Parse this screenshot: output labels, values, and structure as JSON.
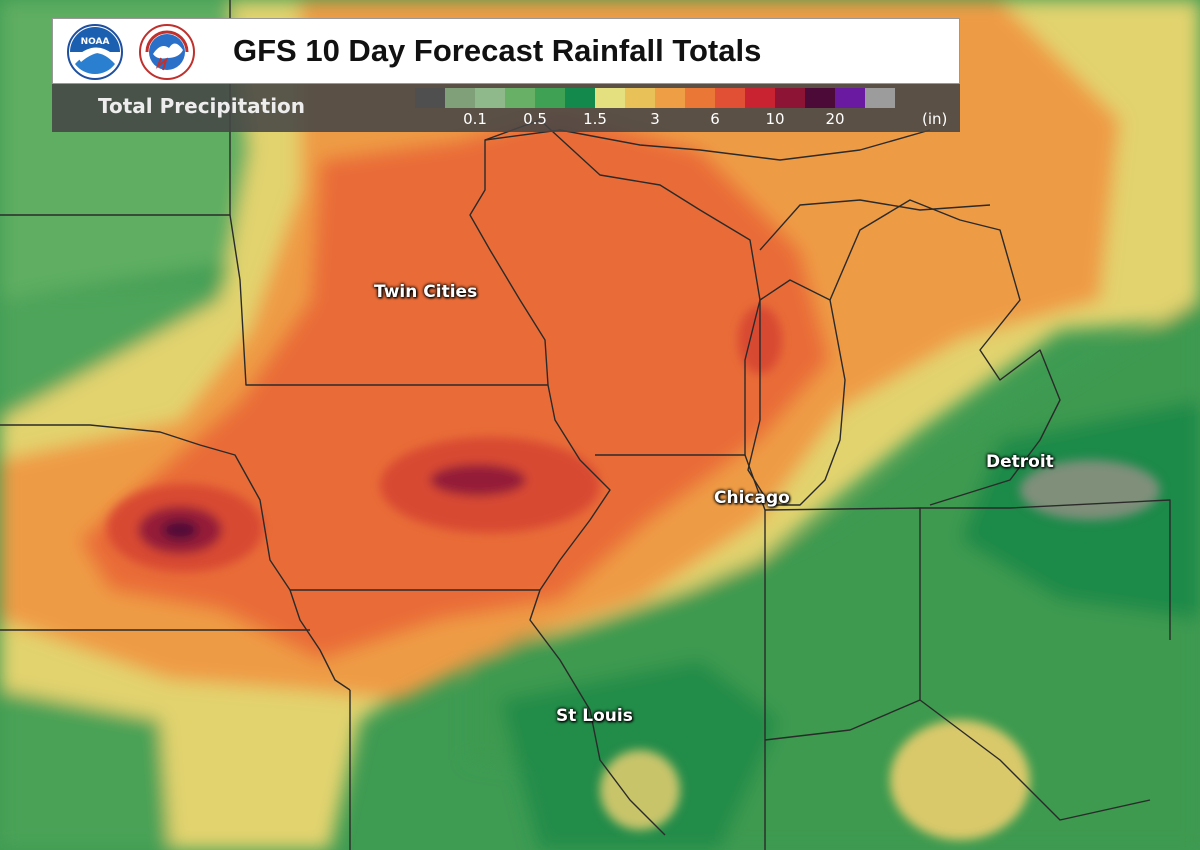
{
  "header": {
    "title": "GFS 10 Day Forecast Rainfall Totals",
    "logos": [
      {
        "name": "noaa-logo",
        "text": "NOAA"
      },
      {
        "name": "nws-logo",
        "text": "NATIONAL WEATHER SERVICE"
      }
    ]
  },
  "legend": {
    "title": "Total Precipitation",
    "unit": "(in)",
    "colors": [
      "#4f4f4f",
      "#7fa079",
      "#8fb98a",
      "#67b065",
      "#3fa153",
      "#138a4b",
      "#e4e07f",
      "#e8c158",
      "#ee9f45",
      "#eb7737",
      "#e14f35",
      "#c92230",
      "#8e1436",
      "#4b0a38",
      "#6a1aa0",
      "#9c9c9c"
    ],
    "ticks": [
      "0.1",
      "0.5",
      "1.5",
      "3",
      "6",
      "10",
      "20"
    ]
  },
  "cities": [
    {
      "name": "Twin Cities"
    },
    {
      "name": "Chicago"
    },
    {
      "name": "Detroit"
    },
    {
      "name": "St Louis"
    }
  ]
}
